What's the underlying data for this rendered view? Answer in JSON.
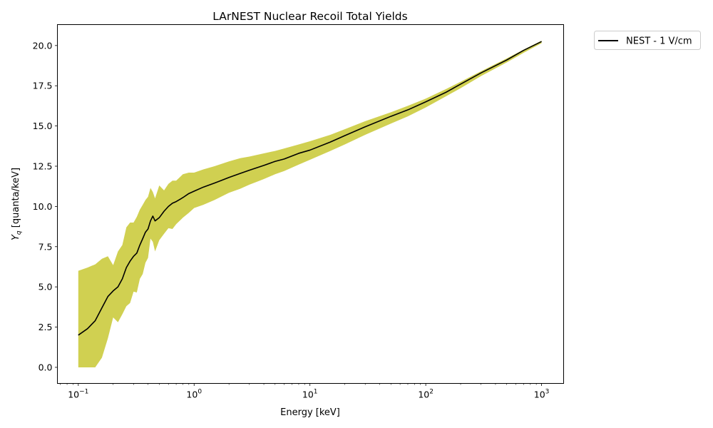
{
  "chart_data": {
    "type": "line",
    "title": "LArNEST Nuclear Recoil Total Yields",
    "xlabel": "Energy [keV]",
    "ylabel_main": "Y",
    "ylabel_sub": "q",
    "ylabel_rest": " [quanta/keV]",
    "xscale": "log",
    "xlim": [
      0.066,
      1550
    ],
    "ylim": [
      -1.0,
      21.3
    ],
    "grid": false,
    "legend_position": "outside-top-right",
    "x_ticks": [
      {
        "base": "10",
        "exp": "−1",
        "value": 0.1
      },
      {
        "base": "10",
        "exp": "0",
        "value": 1
      },
      {
        "base": "10",
        "exp": "1",
        "value": 10
      },
      {
        "base": "10",
        "exp": "2",
        "value": 100
      },
      {
        "base": "10",
        "exp": "3",
        "value": 1000
      }
    ],
    "y_ticks": [
      {
        "label": "0.0",
        "value": 0.0
      },
      {
        "label": "2.5",
        "value": 2.5
      },
      {
        "label": "5.0",
        "value": 5.0
      },
      {
        "label": "7.5",
        "value": 7.5
      },
      {
        "label": "10.0",
        "value": 10.0
      },
      {
        "label": "12.5",
        "value": 12.5
      },
      {
        "label": "15.0",
        "value": 15.0
      },
      {
        "label": "17.5",
        "value": 17.5
      },
      {
        "label": "20.0",
        "value": 20.0
      }
    ],
    "series": [
      {
        "name": "NEST - 1 V/cm",
        "color": "#000000",
        "band_color": "#c8c832",
        "x": [
          0.1,
          0.12,
          0.14,
          0.16,
          0.18,
          0.2,
          0.22,
          0.24,
          0.26,
          0.28,
          0.3,
          0.32,
          0.34,
          0.36,
          0.38,
          0.4,
          0.42,
          0.44,
          0.46,
          0.5,
          0.55,
          0.6,
          0.65,
          0.7,
          0.8,
          0.9,
          1.0,
          1.2,
          1.5,
          2.0,
          2.5,
          3.0,
          4.0,
          5.0,
          6.0,
          8.0,
          10,
          15,
          20,
          30,
          50,
          70,
          100,
          150,
          200,
          300,
          500,
          700,
          1000
        ],
        "y": [
          2.0,
          2.4,
          2.9,
          3.7,
          4.4,
          4.75,
          5.0,
          5.5,
          6.2,
          6.6,
          6.9,
          7.1,
          7.6,
          8.0,
          8.4,
          8.6,
          9.1,
          9.4,
          9.1,
          9.3,
          9.7,
          10.0,
          10.2,
          10.3,
          10.55,
          10.8,
          10.95,
          11.2,
          11.45,
          11.8,
          12.05,
          12.25,
          12.55,
          12.8,
          12.95,
          13.3,
          13.5,
          14.0,
          14.4,
          14.95,
          15.6,
          16.0,
          16.5,
          17.1,
          17.6,
          18.3,
          19.1,
          19.7,
          20.25
        ],
        "upper": [
          6.0,
          6.2,
          6.4,
          6.75,
          6.9,
          6.35,
          7.2,
          7.6,
          8.7,
          9.0,
          9.0,
          9.35,
          9.8,
          10.1,
          10.4,
          10.6,
          11.15,
          10.9,
          10.5,
          11.3,
          11.0,
          11.4,
          11.6,
          11.6,
          12.0,
          12.1,
          12.1,
          12.3,
          12.5,
          12.8,
          13.0,
          13.1,
          13.3,
          13.45,
          13.6,
          13.85,
          14.05,
          14.45,
          14.8,
          15.3,
          15.85,
          16.25,
          16.7,
          17.3,
          17.75,
          18.4,
          19.2,
          19.75,
          20.3
        ],
        "lower": [
          0.0,
          0.0,
          0.0,
          0.6,
          1.8,
          3.1,
          2.8,
          3.3,
          3.8,
          4.0,
          4.7,
          4.65,
          5.5,
          5.8,
          6.5,
          6.8,
          8.0,
          7.8,
          7.2,
          7.9,
          8.3,
          8.65,
          8.6,
          8.9,
          9.3,
          9.6,
          9.9,
          10.1,
          10.4,
          10.85,
          11.1,
          11.35,
          11.7,
          12.0,
          12.2,
          12.6,
          12.9,
          13.45,
          13.85,
          14.45,
          15.15,
          15.6,
          16.15,
          16.85,
          17.35,
          18.1,
          18.95,
          19.55,
          20.15
        ]
      }
    ]
  }
}
